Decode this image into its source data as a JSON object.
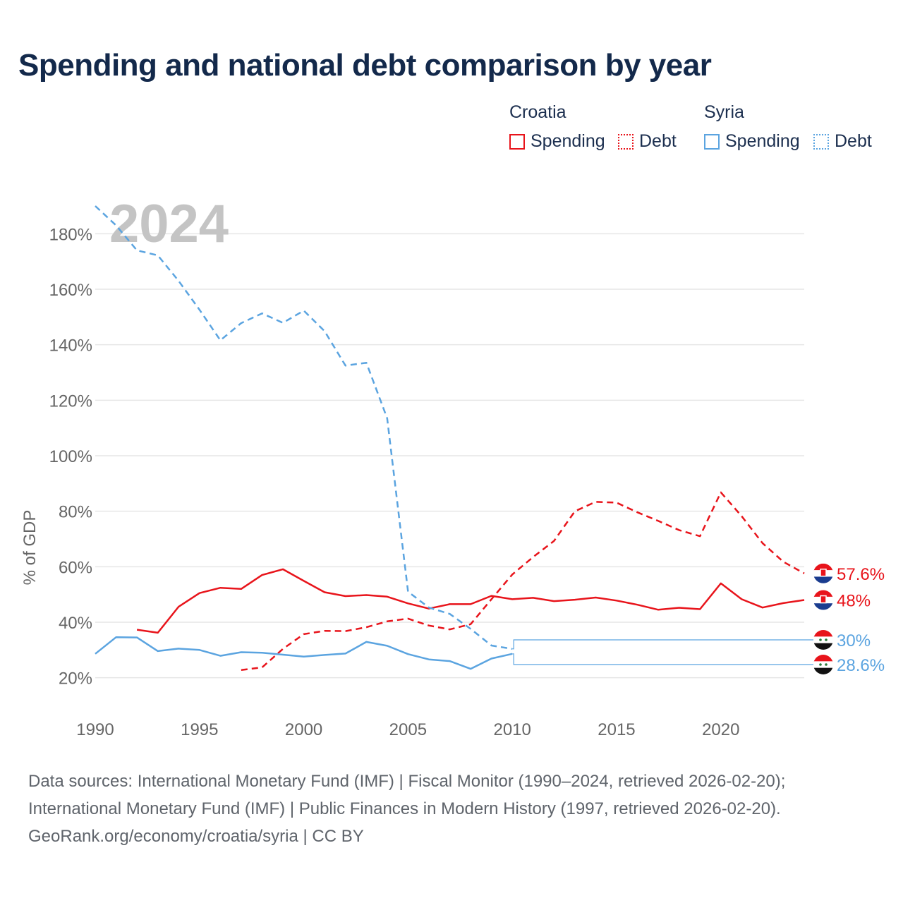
{
  "title": "Spending and national debt comparison by year",
  "legend": {
    "croatia_label": "Croatia",
    "syria_label": "Syria",
    "spending_label": "Spending",
    "debt_label": "Debt"
  },
  "footer": {
    "line1": "Data sources: International Monetary Fund (IMF) | Fiscal Monitor (1990–2024, retrieved 2026-02-20);",
    "line2": "International Monetary Fund (IMF) | Public Finances in Modern History (1997, retrieved 2026-02-20).",
    "line3": "GeoRank.org/economy/croatia/syria | CC BY"
  },
  "colors": {
    "croatia": "#e8141b",
    "syria": "#5ba4e0",
    "grid": "#e6e6e6",
    "axis_text": "#666666",
    "year_watermark": "#c4c4c4"
  },
  "chart_data": {
    "type": "line",
    "title": "Spending and national debt comparison by year",
    "ylabel": "% of GDP",
    "xlabel": "",
    "year_label": "2024",
    "xlim": [
      1990,
      2024
    ],
    "ylim": [
      10,
      190
    ],
    "x_ticks": [
      1990,
      1995,
      2000,
      2005,
      2010,
      2015,
      2020
    ],
    "y_ticks": [
      20,
      40,
      60,
      80,
      100,
      120,
      140,
      160,
      180
    ],
    "y_tick_suffix": "%",
    "grid": true,
    "series": [
      {
        "name": "Croatia Spending",
        "country": "Croatia",
        "metric": "Spending",
        "style": "solid",
        "end_label": "48%",
        "points": [
          [
            1992,
            37.3
          ],
          [
            1993,
            36.2
          ],
          [
            1994,
            45.6
          ],
          [
            1995,
            50.5
          ],
          [
            1996,
            52.4
          ],
          [
            1997,
            52.0
          ],
          [
            1998,
            57.0
          ],
          [
            1999,
            59.1
          ],
          [
            2000,
            54.9
          ],
          [
            2001,
            50.8
          ],
          [
            2002,
            49.4
          ],
          [
            2003,
            49.8
          ],
          [
            2004,
            49.2
          ],
          [
            2005,
            46.8
          ],
          [
            2006,
            44.9
          ],
          [
            2007,
            46.5
          ],
          [
            2008,
            46.5
          ],
          [
            2009,
            49.5
          ],
          [
            2010,
            48.3
          ],
          [
            2011,
            48.8
          ],
          [
            2012,
            47.6
          ],
          [
            2013,
            48.1
          ],
          [
            2014,
            48.9
          ],
          [
            2015,
            47.8
          ],
          [
            2016,
            46.3
          ],
          [
            2017,
            44.5
          ],
          [
            2018,
            45.2
          ],
          [
            2019,
            44.7
          ],
          [
            2020,
            54.0
          ],
          [
            2021,
            48.3
          ],
          [
            2022,
            45.3
          ],
          [
            2023,
            46.9
          ],
          [
            2024,
            48.0
          ]
        ]
      },
      {
        "name": "Croatia Debt",
        "country": "Croatia",
        "metric": "Debt",
        "style": "dashed",
        "end_label": "57.6%",
        "points": [
          [
            1997,
            22.8
          ],
          [
            1998,
            23.7
          ],
          [
            1999,
            30.4
          ],
          [
            2000,
            35.7
          ],
          [
            2001,
            36.9
          ],
          [
            2002,
            36.8
          ],
          [
            2003,
            38.2
          ],
          [
            2004,
            40.3
          ],
          [
            2005,
            41.3
          ],
          [
            2006,
            38.8
          ],
          [
            2007,
            37.4
          ],
          [
            2008,
            39.3
          ],
          [
            2009,
            48.3
          ],
          [
            2010,
            57.2
          ],
          [
            2011,
            63.5
          ],
          [
            2012,
            69.3
          ],
          [
            2013,
            80.0
          ],
          [
            2014,
            83.4
          ],
          [
            2015,
            83.1
          ],
          [
            2016,
            79.6
          ],
          [
            2017,
            76.5
          ],
          [
            2018,
            73.2
          ],
          [
            2019,
            71.0
          ],
          [
            2020,
            86.8
          ],
          [
            2021,
            78.2
          ],
          [
            2022,
            68.5
          ],
          [
            2023,
            61.8
          ],
          [
            2024,
            57.6
          ]
        ]
      },
      {
        "name": "Syria Spending",
        "country": "Syria",
        "metric": "Spending",
        "style": "solid",
        "end_label": "28.6%",
        "points": [
          [
            1990,
            28.6
          ],
          [
            1991,
            34.6
          ],
          [
            1992,
            34.5
          ],
          [
            1993,
            29.6
          ],
          [
            1994,
            30.5
          ],
          [
            1995,
            30.0
          ],
          [
            1996,
            27.9
          ],
          [
            1997,
            29.2
          ],
          [
            1998,
            29.0
          ],
          [
            1999,
            28.3
          ],
          [
            2000,
            27.6
          ],
          [
            2001,
            28.2
          ],
          [
            2002,
            28.7
          ],
          [
            2003,
            32.9
          ],
          [
            2004,
            31.5
          ],
          [
            2005,
            28.5
          ],
          [
            2006,
            26.6
          ],
          [
            2007,
            26.0
          ],
          [
            2008,
            23.2
          ],
          [
            2009,
            26.9
          ],
          [
            2010,
            28.6
          ]
        ]
      },
      {
        "name": "Syria Debt",
        "country": "Syria",
        "metric": "Debt",
        "style": "dashed",
        "end_label": "30%",
        "points": [
          [
            1990,
            190.0
          ],
          [
            1991,
            183.0
          ],
          [
            1992,
            174.0
          ],
          [
            1993,
            172.2
          ],
          [
            1994,
            163.0
          ],
          [
            1995,
            152.6
          ],
          [
            1996,
            141.6
          ],
          [
            1997,
            147.8
          ],
          [
            1998,
            151.3
          ],
          [
            1999,
            147.9
          ],
          [
            2000,
            152.3
          ],
          [
            2001,
            144.9
          ],
          [
            2002,
            132.5
          ],
          [
            2003,
            133.5
          ],
          [
            2004,
            113.5
          ],
          [
            2005,
            51.0
          ],
          [
            2006,
            45.3
          ],
          [
            2007,
            43.0
          ],
          [
            2008,
            37.6
          ],
          [
            2009,
            31.6
          ],
          [
            2010,
            30.4
          ]
        ]
      }
    ]
  }
}
